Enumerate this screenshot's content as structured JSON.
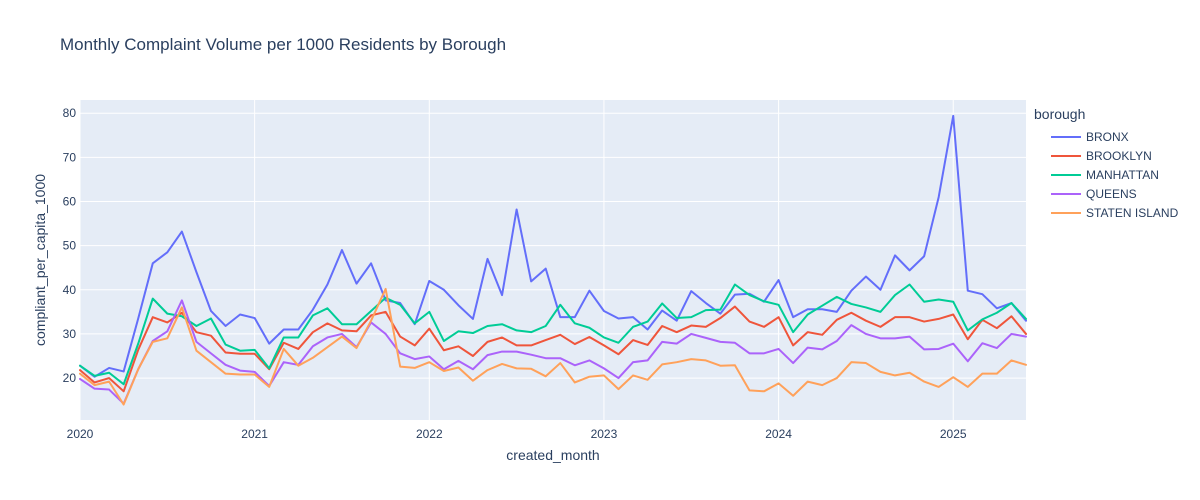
{
  "chart_data": {
    "type": "line",
    "title": "Monthly Complaint Volume per 1000 Residents by Borough",
    "xlabel": "created_month",
    "ylabel": "compliant_per_capita_1000",
    "x_start": "2020-01",
    "x_end": "2025-06",
    "x_ticks": [
      "2020",
      "2021",
      "2022",
      "2023",
      "2024",
      "2025"
    ],
    "ylim": [
      10.5,
      83
    ],
    "y_ticks": [
      20,
      30,
      40,
      50,
      60,
      70,
      80
    ],
    "grid": true,
    "legend_title": "borough",
    "legend_position": "right",
    "series": [
      {
        "name": "BRONX",
        "color": "#636efa",
        "values": [
          22.8,
          20.3,
          22.3,
          21.5,
          33.5,
          46.0,
          48.5,
          53.2,
          44.0,
          35.2,
          31.8,
          34.4,
          33.6,
          27.8,
          31.0,
          31.0,
          35.5,
          41.2,
          49.0,
          41.4,
          46.0,
          37.6,
          37.0,
          32.2,
          42.0,
          40.0,
          36.5,
          33.4,
          47.0,
          38.8,
          58.2,
          41.9,
          44.8,
          33.8,
          33.8,
          39.8,
          35.2,
          33.5,
          33.8,
          31.0,
          35.3,
          33.0,
          39.7,
          37.0,
          34.6,
          38.9,
          39.1,
          37.3,
          42.2,
          33.8,
          35.6,
          35.6,
          35.0,
          39.8,
          43.0,
          40.0,
          47.8,
          44.4,
          47.6,
          61.0,
          79.4,
          39.8,
          39.0,
          35.8,
          37.0,
          33.0
        ]
      },
      {
        "name": "BROOKLYN",
        "color": "#ef553b",
        "values": [
          21.8,
          19.0,
          20.0,
          17.0,
          26.4,
          33.8,
          32.6,
          34.8,
          30.4,
          29.6,
          25.8,
          25.5,
          25.5,
          22.0,
          28.0,
          26.6,
          30.4,
          32.4,
          30.8,
          30.6,
          34.2,
          35.0,
          29.4,
          27.4,
          31.2,
          26.3,
          27.2,
          25.0,
          28.2,
          29.2,
          27.4,
          27.4,
          28.6,
          29.8,
          27.7,
          29.3,
          27.4,
          25.4,
          28.6,
          27.5,
          31.8,
          30.4,
          31.9,
          31.6,
          33.6,
          36.2,
          32.8,
          31.6,
          33.8,
          27.4,
          30.4,
          29.8,
          33.2,
          34.8,
          33.0,
          31.6,
          33.8,
          33.8,
          32.8,
          33.4,
          34.4,
          28.8,
          33.2,
          31.3,
          34.0,
          30.0
        ]
      },
      {
        "name": "MANHATTAN",
        "color": "#00cc96",
        "values": [
          22.8,
          20.5,
          21.2,
          18.6,
          27.8,
          38.0,
          34.6,
          34.0,
          31.8,
          33.5,
          27.6,
          26.2,
          26.4,
          22.2,
          29.2,
          29.2,
          34.2,
          35.8,
          32.2,
          32.2,
          35.2,
          38.2,
          36.6,
          32.4,
          35.0,
          28.4,
          30.6,
          30.2,
          31.8,
          32.2,
          30.8,
          30.4,
          31.8,
          36.6,
          32.4,
          31.4,
          29.2,
          28.0,
          31.6,
          32.8,
          36.9,
          33.6,
          33.8,
          35.4,
          35.5,
          41.2,
          38.8,
          37.4,
          36.6,
          30.4,
          34.4,
          36.4,
          38.4,
          36.8,
          36.0,
          35.0,
          38.8,
          41.2,
          37.3,
          37.8,
          37.3,
          30.8,
          33.3,
          34.8,
          37.0,
          33.4
        ]
      },
      {
        "name": "QUEENS",
        "color": "#ab63fa",
        "values": [
          19.8,
          17.6,
          17.4,
          14.2,
          22.0,
          28.4,
          30.6,
          37.6,
          28.2,
          25.6,
          23.0,
          21.7,
          21.4,
          18.2,
          23.6,
          23.0,
          27.2,
          29.2,
          30.0,
          27.0,
          32.6,
          30.0,
          25.6,
          24.3,
          24.9,
          22.0,
          23.9,
          22.0,
          25.2,
          26.0,
          26.0,
          25.3,
          24.5,
          24.5,
          22.9,
          24.0,
          22.2,
          20.0,
          23.6,
          24.0,
          28.2,
          27.8,
          30.0,
          29.1,
          28.2,
          28.0,
          25.6,
          25.6,
          26.6,
          23.4,
          26.9,
          26.5,
          28.4,
          32.0,
          30.0,
          29.0,
          29.0,
          29.4,
          26.5,
          26.6,
          27.8,
          23.8,
          27.9,
          26.8,
          30.0,
          29.4
        ]
      },
      {
        "name": "STATEN ISLAND",
        "color": "#ffa15a",
        "values": [
          21.0,
          18.4,
          19.2,
          14.0,
          22.0,
          28.2,
          29.0,
          36.0,
          26.2,
          23.6,
          21.0,
          20.8,
          20.8,
          18.0,
          26.6,
          22.8,
          24.6,
          27.0,
          29.4,
          26.8,
          33.0,
          40.2,
          22.6,
          22.3,
          23.6,
          21.6,
          22.4,
          19.4,
          21.8,
          23.2,
          22.2,
          22.1,
          20.4,
          23.4,
          19.0,
          20.3,
          20.6,
          17.5,
          20.6,
          19.6,
          23.1,
          23.6,
          24.3,
          24.0,
          22.8,
          22.9,
          17.2,
          17.0,
          18.8,
          16.0,
          19.2,
          18.4,
          20.0,
          23.6,
          23.4,
          21.4,
          20.6,
          21.2,
          19.2,
          18.0,
          20.2,
          18.0,
          21.0,
          21.0,
          24.0,
          23.0
        ]
      }
    ]
  }
}
